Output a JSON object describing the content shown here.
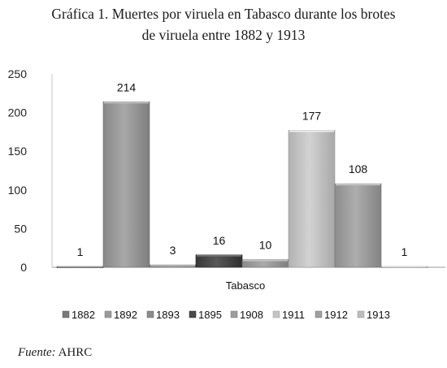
{
  "title_line1": "Gráfica 1. Muertes por viruela en Tabasco durante los brotes",
  "title_line2": "de viruela entre 1882 y 1913",
  "source_label": "Fuente:",
  "source_value": "AHRC",
  "chart_data": {
    "type": "bar",
    "categories": [
      "Tabasco"
    ],
    "xlabel": "",
    "ylabel": "",
    "ylim": [
      0,
      250
    ],
    "yticks": [
      0,
      50,
      100,
      150,
      200,
      250
    ],
    "grid": false,
    "legend_position": "bottom",
    "series": [
      {
        "name": "1882",
        "values": [
          1
        ],
        "color": "#7a7a7a"
      },
      {
        "name": "1892",
        "values": [
          214
        ],
        "color": "#9a9a9a"
      },
      {
        "name": "1893",
        "values": [
          3
        ],
        "color": "#8c8c8c"
      },
      {
        "name": "1895",
        "values": [
          16
        ],
        "color": "#4a4a4a"
      },
      {
        "name": "1908",
        "values": [
          10
        ],
        "color": "#9c9c9c"
      },
      {
        "name": "1911",
        "values": [
          177
        ],
        "color": "#c4c4c4"
      },
      {
        "name": "1912",
        "values": [
          108
        ],
        "color": "#9f9f9f"
      },
      {
        "name": "1913",
        "values": [
          1
        ],
        "color": "#bcbcbc"
      }
    ]
  }
}
